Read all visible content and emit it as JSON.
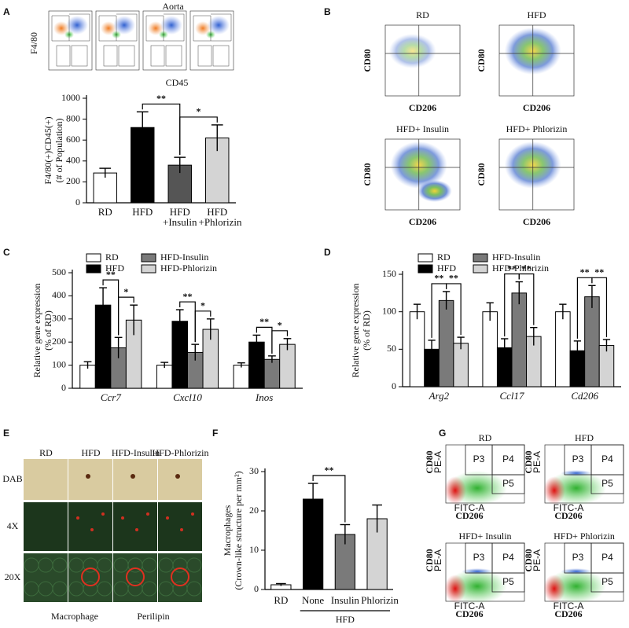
{
  "panel_labels": [
    "A",
    "B",
    "C",
    "D",
    "E",
    "F",
    "G"
  ],
  "flow_a": {
    "title": "Aorta",
    "x_label": "CD45",
    "y_label": "F4/80"
  },
  "flow_b": {
    "plots": [
      "RD",
      "HFD",
      "HFD+ Insulin",
      "HFD+ Phlorizin"
    ],
    "x_label": "CD206",
    "y_label": "CD80"
  },
  "histology_e": {
    "columns": [
      "RD",
      "HFD",
      "HFD-Insulin",
      "HFD-Phlorizin"
    ],
    "rows": [
      "DAB",
      "4X",
      "20X"
    ],
    "stains": [
      "Macrophage",
      "Perilipin"
    ]
  },
  "flow_g": {
    "plots": [
      "RD",
      "HFD",
      "HFD+ Insulin",
      "HFD+ Phlorizin"
    ],
    "gates": [
      "P3",
      "P4",
      "P5"
    ],
    "x_label": "CD206",
    "y_label": "CD80",
    "x_channel": "FITC-A",
    "y_channel": "PE-A"
  },
  "chart_data": [
    {
      "type": "bar",
      "y_label": [
        "F4/80(+)CD45(+)",
        "(# of Population)"
      ],
      "categories": [
        "RD",
        "HFD",
        "HFD +Insulin",
        "HFD +Phlorizin"
      ],
      "values": [
        285,
        720,
        360,
        620
      ],
      "errors": [
        45,
        150,
        75,
        125
      ],
      "colors": [
        "#ffffff",
        "#000000",
        "#555555",
        "#d4d4d4"
      ],
      "ylim": [
        0,
        1000
      ],
      "yticks": [
        0,
        200,
        400,
        600,
        800,
        1000
      ],
      "significance": [
        {
          "label": "**",
          "pair": [
            "HFD",
            "HFD +Insulin"
          ]
        },
        {
          "label": "*",
          "pair": [
            "HFD +Insulin",
            "HFD +Phlorizin"
          ]
        }
      ]
    },
    {
      "type": "bar",
      "y_label": [
        "Relative gene expression",
        "(% of RD)"
      ],
      "categories": [
        "Ccr7",
        "Cxcl10",
        "Inos"
      ],
      "series": [
        {
          "name": "RD",
          "color": "#ffffff",
          "values": [
            100,
            100,
            100
          ],
          "errors": [
            15,
            12,
            10
          ]
        },
        {
          "name": "HFD",
          "color": "#000000",
          "values": [
            360,
            290,
            200
          ],
          "errors": [
            75,
            50,
            30
          ]
        },
        {
          "name": "HFD-Insulin",
          "color": "#7a7a7a",
          "values": [
            175,
            155,
            125
          ],
          "errors": [
            45,
            35,
            15
          ]
        },
        {
          "name": "HFD-Phlorizin",
          "color": "#d4d4d4",
          "values": [
            295,
            255,
            190
          ],
          "errors": [
            65,
            45,
            25
          ]
        }
      ],
      "ylim": [
        0,
        500
      ],
      "yticks": [
        0,
        100,
        200,
        300,
        400,
        500
      ],
      "significance": [
        {
          "category": "Ccr7",
          "label": "**",
          "pair": [
            "HFD",
            "HFD-Insulin"
          ]
        },
        {
          "category": "Ccr7",
          "label": "*",
          "pair": [
            "HFD-Insulin",
            "HFD-Phlorizin"
          ]
        },
        {
          "category": "Cxcl10",
          "label": "**",
          "pair": [
            "HFD",
            "HFD-Insulin"
          ]
        },
        {
          "category": "Cxcl10",
          "label": "*",
          "pair": [
            "HFD-Insulin",
            "HFD-Phlorizin"
          ]
        },
        {
          "category": "Inos",
          "label": "**",
          "pair": [
            "HFD",
            "HFD-Insulin"
          ]
        },
        {
          "category": "Inos",
          "label": "*",
          "pair": [
            "HFD-Insulin",
            "HFD-Phlorizin"
          ]
        }
      ]
    },
    {
      "type": "bar",
      "y_label": [
        "Relative gene expression",
        "(% of RD)"
      ],
      "categories": [
        "Arg2",
        "Ccl17",
        "Cd206"
      ],
      "series": [
        {
          "name": "RD",
          "color": "#ffffff",
          "values": [
            100,
            100,
            100
          ],
          "errors": [
            10,
            12,
            10
          ]
        },
        {
          "name": "HFD",
          "color": "#000000",
          "values": [
            50,
            52,
            48
          ],
          "errors": [
            12,
            12,
            13
          ]
        },
        {
          "name": "HFD-Insulin",
          "color": "#7a7a7a",
          "values": [
            115,
            125,
            120
          ],
          "errors": [
            12,
            15,
            15
          ]
        },
        {
          "name": "HFD-Phlorizin",
          "color": "#d4d4d4",
          "values": [
            58,
            67,
            55
          ],
          "errors": [
            8,
            12,
            8
          ]
        }
      ],
      "ylim": [
        0,
        150
      ],
      "yticks": [
        0,
        50,
        100,
        150
      ],
      "significance": [
        {
          "category": "Arg2",
          "label": "**",
          "pair": [
            "HFD",
            "HFD-Insulin"
          ]
        },
        {
          "category": "Arg2",
          "label": "**",
          "pair": [
            "HFD-Insulin",
            "HFD-Phlorizin"
          ]
        },
        {
          "category": "Ccl17",
          "label": "**",
          "pair": [
            "HFD",
            "HFD-Insulin"
          ]
        },
        {
          "category": "Ccl17",
          "label": "**",
          "pair": [
            "HFD-Insulin",
            "HFD-Phlorizin"
          ]
        },
        {
          "category": "Cd206",
          "label": "**",
          "pair": [
            "HFD",
            "HFD-Insulin"
          ]
        },
        {
          "category": "Cd206",
          "label": "**",
          "pair": [
            "HFD-Insulin",
            "HFD-Phlorizin"
          ]
        }
      ]
    },
    {
      "type": "bar",
      "y_label": [
        "Macrophages",
        "(Crown-like structure per mm²)"
      ],
      "categories": [
        "RD",
        "None",
        "Insulin",
        "Phlorizin"
      ],
      "values": [
        1.2,
        23,
        14,
        18
      ],
      "errors": [
        0.3,
        4,
        2.5,
        3.5
      ],
      "colors": [
        "#ffffff",
        "#000000",
        "#7a7a7a",
        "#d4d4d4"
      ],
      "ylim": [
        0,
        30
      ],
      "yticks": [
        0,
        10,
        20,
        30
      ],
      "group": {
        "label": "HFD",
        "from": "None",
        "to": "Phlorizin"
      },
      "significance": [
        {
          "label": "**",
          "pair": [
            "None",
            "Insulin"
          ]
        }
      ]
    }
  ]
}
